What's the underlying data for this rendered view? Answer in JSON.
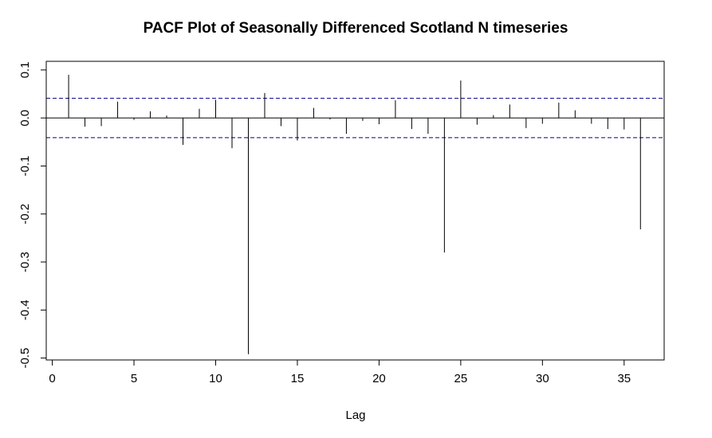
{
  "chart_data": {
    "type": "bar",
    "title": "PACF Plot of Seasonally Differenced Scotland N timeseries",
    "xlabel": "Lag",
    "ylabel": "",
    "xlim": [
      0,
      37
    ],
    "ylim": [
      -0.5,
      0.1
    ],
    "x_ticks": [
      0,
      5,
      10,
      15,
      20,
      25,
      30,
      35
    ],
    "x_tick_labels": [
      "0",
      "5",
      "10",
      "15",
      "20",
      "25",
      "30",
      "35"
    ],
    "y_ticks": [
      -0.5,
      -0.4,
      -0.3,
      -0.2,
      -0.1,
      0.0,
      0.1
    ],
    "y_tick_labels": [
      "-0.5",
      "-0.4",
      "-0.3",
      "-0.2",
      "-0.1",
      "0.0",
      "0.1"
    ],
    "confidence_bound": 0.041,
    "confidence_line_color": "#00008B",
    "lags": [
      1,
      2,
      3,
      4,
      5,
      6,
      7,
      8,
      9,
      10,
      11,
      12,
      13,
      14,
      15,
      16,
      17,
      18,
      19,
      20,
      21,
      22,
      23,
      24,
      25,
      26,
      27,
      28,
      29,
      30,
      31,
      32,
      33,
      34,
      35,
      36
    ],
    "values": [
      0.09,
      -0.018,
      -0.017,
      0.034,
      -0.004,
      0.014,
      0.005,
      -0.056,
      0.019,
      0.038,
      -0.063,
      -0.492,
      0.052,
      -0.017,
      -0.047,
      0.021,
      -0.003,
      -0.033,
      -0.006,
      -0.013,
      0.037,
      -0.023,
      -0.033,
      -0.28,
      0.078,
      -0.014,
      0.006,
      0.028,
      -0.021,
      -0.012,
      0.032,
      0.016,
      -0.012,
      -0.023,
      -0.024,
      -0.232
    ],
    "grid": false,
    "legend": "none"
  }
}
